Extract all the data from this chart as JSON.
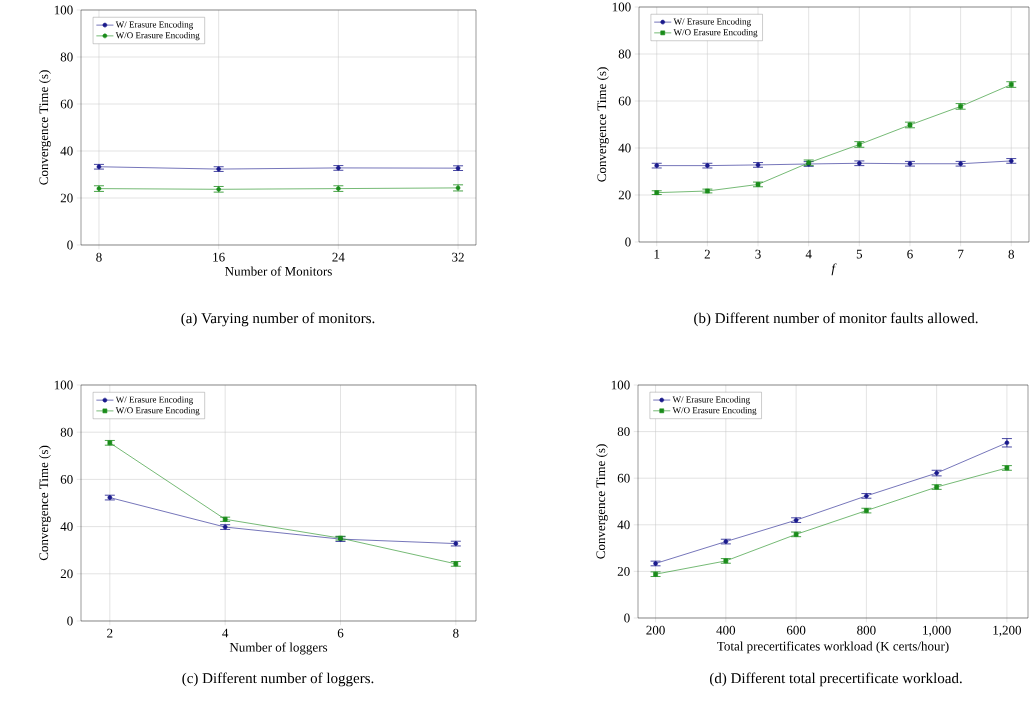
{
  "chart_data": [
    {
      "type": "line",
      "xlabel": "Number of Monitors",
      "ylabel": "Convergence Time (s)",
      "annotations": [
        "(a) Varying number of monitors."
      ],
      "x": [
        8,
        16,
        24,
        32
      ],
      "xlim": [
        6.8,
        33.2
      ],
      "xticks": [
        8,
        16,
        24,
        32
      ],
      "ylim": [
        0,
        100
      ],
      "yticks": [
        0,
        20,
        40,
        60,
        80,
        100
      ],
      "grid": true,
      "legend": "top left",
      "series": [
        {
          "name": "W/ Erasure Encoding",
          "color": "#1a1a8c",
          "marker": "circle",
          "values": [
            33.3,
            32.3,
            32.8,
            32.7
          ],
          "errors": [
            1.0,
            1.0,
            1.0,
            1.0
          ]
        },
        {
          "name": "W/O Erasure Encoding",
          "color": "#1a8c1a",
          "marker": "circle",
          "values": [
            24.0,
            23.7,
            24.0,
            24.3
          ],
          "errors": [
            1.2,
            1.2,
            1.2,
            1.3
          ]
        }
      ]
    },
    {
      "type": "line",
      "xlabel": "*f*",
      "ylabel": "Convergence Time (s)",
      "annotations": [
        "(b) Different number of monitor faults allowed."
      ],
      "x": [
        1,
        2,
        3,
        4,
        5,
        6,
        7,
        8
      ],
      "xlim": [
        0.65,
        8.35
      ],
      "xticks": [
        1,
        2,
        3,
        4,
        5,
        6,
        7,
        8
      ],
      "ylim": [
        0,
        100
      ],
      "yticks": [
        0,
        20,
        40,
        60,
        80,
        100
      ],
      "grid": true,
      "legend": "top left",
      "series": [
        {
          "name": "W/ Erasure Encoding",
          "color": "#1a1a8c",
          "marker": "circle",
          "values": [
            32.5,
            32.5,
            32.8,
            33.2,
            33.5,
            33.3,
            33.3,
            34.5
          ],
          "errors": [
            1.0,
            1.0,
            1.0,
            1.0,
            1.0,
            1.0,
            1.0,
            1.0
          ]
        },
        {
          "name": "W/O Erasure Encoding",
          "color": "#1a8c1a",
          "marker": "square",
          "values": [
            21.0,
            21.7,
            24.5,
            33.7,
            41.5,
            49.8,
            57.7,
            67.0
          ],
          "errors": [
            0.8,
            0.8,
            1.0,
            1.2,
            1.2,
            1.2,
            1.2,
            1.2
          ]
        }
      ]
    },
    {
      "type": "line",
      "xlabel": "Number of loggers",
      "ylabel": "Convergence Time (s)",
      "annotations": [
        "(c) Different number of loggers."
      ],
      "x": [
        2,
        4,
        6,
        8
      ],
      "xlim": [
        1.5,
        8.35
      ],
      "xticks": [
        2,
        4,
        6,
        8
      ],
      "ylim": [
        0,
        100
      ],
      "yticks": [
        0,
        20,
        40,
        60,
        80,
        100
      ],
      "grid": true,
      "legend": "top left",
      "series": [
        {
          "name": "W/ Erasure Encoding",
          "color": "#1a1a8c",
          "marker": "circle",
          "values": [
            52.3,
            39.8,
            34.7,
            32.8
          ],
          "errors": [
            1.0,
            1.0,
            1.0,
            1.0
          ]
        },
        {
          "name": "W/O Erasure Encoding",
          "color": "#1a8c1a",
          "marker": "square",
          "values": [
            75.5,
            43.1,
            35.1,
            24.2
          ],
          "errors": [
            1.0,
            0.9,
            0.8,
            1.0
          ]
        }
      ]
    },
    {
      "type": "line",
      "xlabel": "Total precertificates workload (K certs/hour)",
      "ylabel": "Convergence Time (s)",
      "annotations": [
        "(d) Different total precertificate workload."
      ],
      "x": [
        200,
        400,
        600,
        800,
        1000,
        1200
      ],
      "xlim": [
        150,
        1260
      ],
      "xticks": [
        200,
        400,
        600,
        800,
        {
          "value": 1000,
          "label": "1,000"
        },
        {
          "value": 1200,
          "label": "1,200"
        }
      ],
      "ylim": [
        0,
        100
      ],
      "yticks": [
        0,
        20,
        40,
        60,
        80,
        100
      ],
      "grid": true,
      "legend": "top left",
      "series": [
        {
          "name": "W/ Erasure Encoding",
          "color": "#1a1a8c",
          "marker": "circle",
          "values": [
            23.4,
            32.8,
            42.0,
            52.4,
            62.2,
            75.2
          ],
          "errors": [
            1.0,
            1.0,
            1.0,
            1.0,
            1.2,
            1.8
          ]
        },
        {
          "name": "W/O Erasure Encoding",
          "color": "#1a8c1a",
          "marker": "square",
          "values": [
            18.8,
            24.5,
            35.9,
            46.1,
            56.2,
            64.4
          ],
          "errors": [
            1.0,
            1.0,
            1.0,
            1.0,
            1.0,
            1.0
          ]
        }
      ]
    }
  ]
}
